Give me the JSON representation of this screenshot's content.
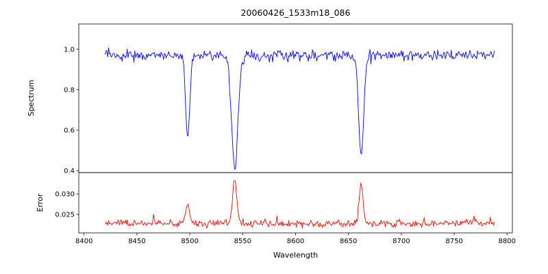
{
  "chart_data": {
    "type": "line",
    "title": "20060426_1533m18_086",
    "xlabel": "Wavelength",
    "grid": false,
    "legend": "none",
    "xlim": [
      8395,
      8805
    ],
    "x_ticks": [
      {
        "v": 8400,
        "label": "8400"
      },
      {
        "v": 8450,
        "label": "8450"
      },
      {
        "v": 8500,
        "label": "8500"
      },
      {
        "v": 8550,
        "label": "8550"
      },
      {
        "v": 8600,
        "label": "8600"
      },
      {
        "v": 8650,
        "label": "8650"
      },
      {
        "v": 8700,
        "label": "8700"
      },
      {
        "v": 8750,
        "label": "8750"
      },
      {
        "v": 8800,
        "label": "8800"
      }
    ],
    "panels": [
      {
        "ylabel": "Spectrum",
        "ylim": [
          0.39,
          1.125
        ],
        "yticks": [
          {
            "v": 1.0,
            "label": "1.0"
          },
          {
            "v": 0.8,
            "label": "0.8"
          },
          {
            "v": 0.6,
            "label": "0.6"
          },
          {
            "v": 0.4,
            "label": "0.4"
          }
        ]
      },
      {
        "ylabel": "Error",
        "ylim": [
          0.0205,
          0.0352
        ],
        "yticks": [
          {
            "v": 0.03,
            "label": "0.030"
          },
          {
            "v": 0.025,
            "label": "0.025"
          }
        ]
      }
    ],
    "seed": 20060426,
    "series": [
      {
        "name": "spectrum",
        "panel": 0,
        "color": "#0000ff",
        "x_start": 8420,
        "x_end": 8788,
        "step": 0.8,
        "continuum": 0.97,
        "noise_sigma": 0.013,
        "spike_probability": 0.05,
        "spike_max_depth": 0.035,
        "absorption_lines": [
          {
            "center": 8498.0,
            "depth": 0.4,
            "sigma": 1.9
          },
          {
            "center": 8542.5,
            "depth": 0.56,
            "sigma": 3.0
          },
          {
            "center": 8662.0,
            "depth": 0.49,
            "sigma": 2.4
          }
        ]
      },
      {
        "name": "error",
        "panel": 1,
        "color": "#ff0000",
        "x_start": 8420,
        "x_end": 8788,
        "step": 0.8,
        "baseline": 0.0228,
        "noise_sigma": 0.00042,
        "spike_probability": 0.05,
        "spike_max_height": 0.0012,
        "peaks": [
          {
            "center": 8498.0,
            "amplitude": 0.005,
            "sigma": 1.8
          },
          {
            "center": 8542.5,
            "amplitude": 0.0105,
            "sigma": 2.0
          },
          {
            "center": 8662.0,
            "amplitude": 0.0096,
            "sigma": 1.9
          },
          {
            "center": 8466.0,
            "amplitude": 0.0013,
            "sigma": 1.5
          },
          {
            "center": 8769.0,
            "amplitude": 0.0016,
            "sigma": 1.5
          }
        ]
      }
    ],
    "colors": {
      "spectrum_line": "#0000ff",
      "error_line": "#ff0000",
      "axis": "#000000",
      "background": "#ffffff"
    }
  }
}
